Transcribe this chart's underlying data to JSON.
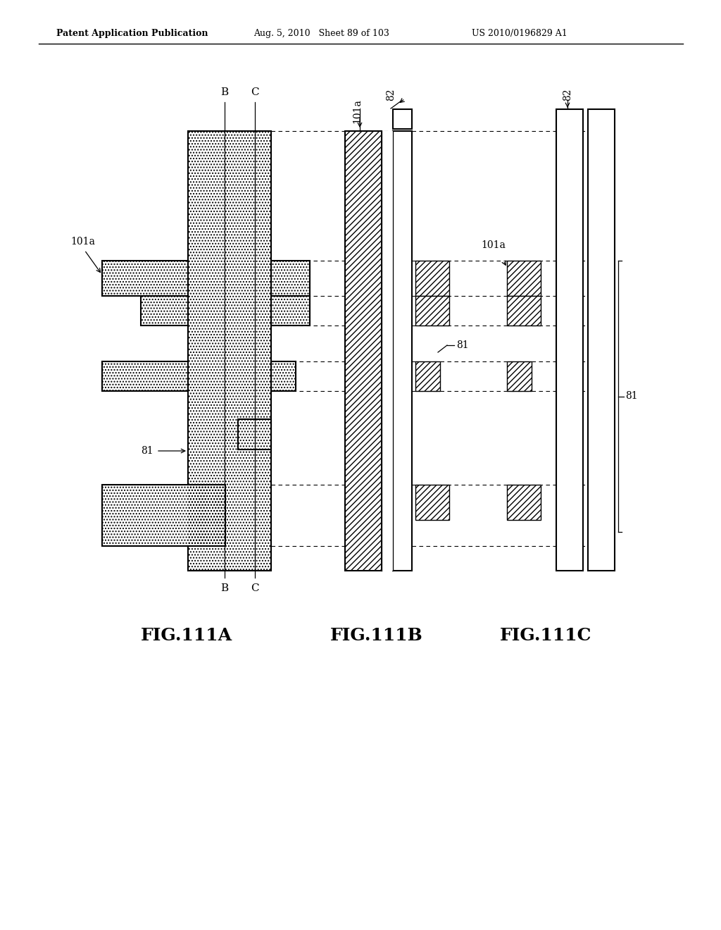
{
  "header_left": "Patent Application Publication",
  "header_mid": "Aug. 5, 2010   Sheet 89 of 103",
  "header_right": "US 2010/0196829 A1",
  "background": "#ffffff"
}
